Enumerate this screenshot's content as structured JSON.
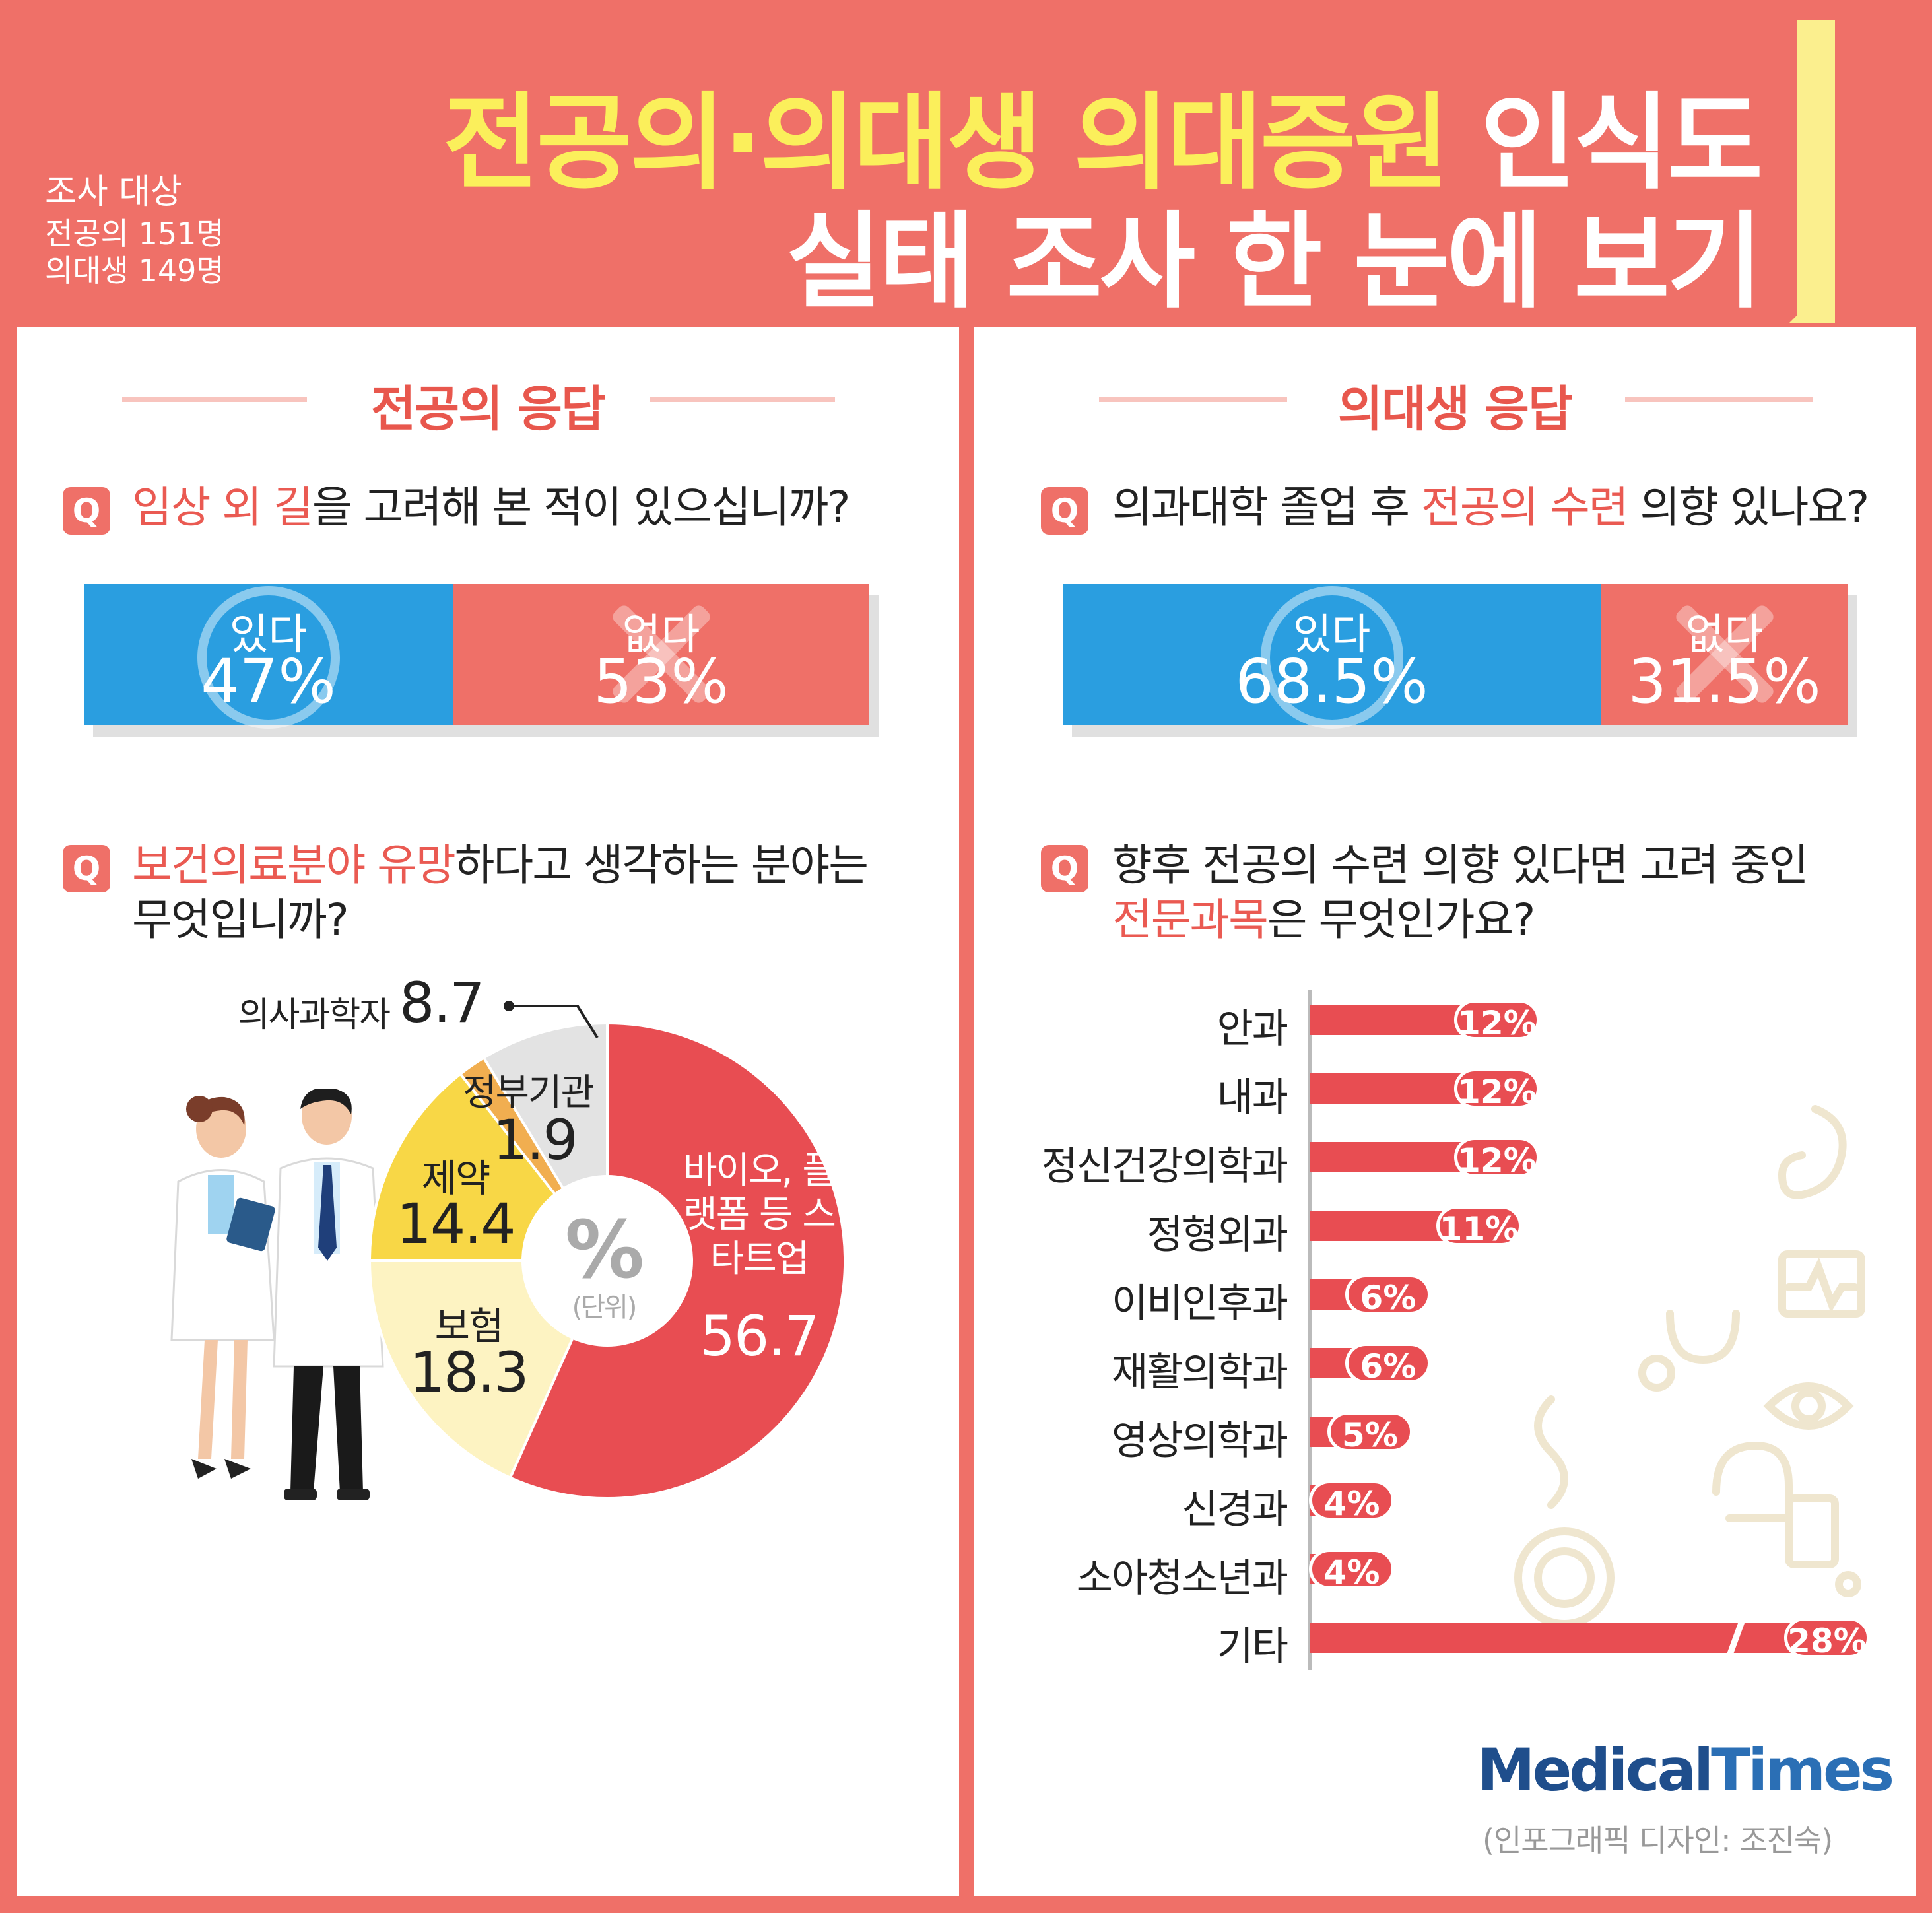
{
  "header": {
    "title_line1_highlight": "전공의·의대생 의대증원",
    "title_line1_rest": " 인식도",
    "title_line2": "실태 조사 한 눈에 보기",
    "subject_heading": "조사 대상",
    "subject_residents": "전공의 151명",
    "subject_students": "의대생 149명"
  },
  "left": {
    "section_title": "전공의 응답",
    "q_icon": "Q",
    "q1_hl": "임상 외 길",
    "q1_rest": "을 고려해 본 적이 있으십니까?",
    "q2_hl": "보건의료분야 유망",
    "q2_rest": "하다고 생각하는 분야는",
    "q2_line2": "무엇입니까?",
    "pie_center": "%",
    "pie_unit": "(단위)"
  },
  "right": {
    "section_title": "의대생 응답",
    "q_icon": "Q",
    "q1_pre": "의과대학 졸업 후 ",
    "q1_hl": "전공의 수련",
    "q1_post": " 의향 있나요?",
    "q2_line1": "향후 전공의 수련 의향 있다면 고려 중인",
    "q2_hl": "전문과목",
    "q2_post": "은 무엇인가요?"
  },
  "chart_data": [
    {
      "type": "bar",
      "stacked": true,
      "orientation": "horizontal",
      "categories": [
        "있다",
        "없다"
      ],
      "values": [
        47,
        53
      ],
      "labels": [
        "47%",
        "53%"
      ],
      "colors": [
        "#2a9ee0",
        "#ef7068"
      ]
    },
    {
      "type": "bar",
      "stacked": true,
      "orientation": "horizontal",
      "categories": [
        "있다",
        "없다"
      ],
      "values": [
        68.5,
        31.5
      ],
      "labels": [
        "68.5%",
        "31.5%"
      ],
      "colors": [
        "#2a9ee0",
        "#ef7068"
      ]
    },
    {
      "type": "pie",
      "donut": true,
      "categories": [
        "바이오, 플랫폼 등 스타트업",
        "보험",
        "제약",
        "정부기관",
        "의사과학자"
      ],
      "values": [
        56.7,
        18.3,
        14.4,
        1.9,
        8.7
      ],
      "labels": [
        "56.7",
        "18.3",
        "14.4",
        "1.9",
        "8.7"
      ],
      "colors": [
        "#e84d52",
        "#fdf3c2",
        "#f8d746",
        "#f1ae50",
        "#e3e3e3"
      ]
    },
    {
      "type": "bar",
      "orientation": "horizontal",
      "categories": [
        "안과",
        "내과",
        "정신건강의학과",
        "정형외과",
        "이비인후과",
        "재활의학과",
        "영상의학과",
        "신경과",
        "소아청소년과",
        "기타"
      ],
      "values": [
        12,
        12,
        12,
        11,
        6,
        6,
        5,
        4,
        4,
        28
      ],
      "labels": [
        "12%",
        "12%",
        "12%",
        "11%",
        "6%",
        "6%",
        "5%",
        "4%",
        "4%",
        "28%"
      ],
      "broken_axis_last": true,
      "color": "#e84d52"
    }
  ],
  "brand": {
    "medical": "Medical",
    "times": "Times",
    "credit": "(인포그래픽 디자인: 조진숙)"
  }
}
